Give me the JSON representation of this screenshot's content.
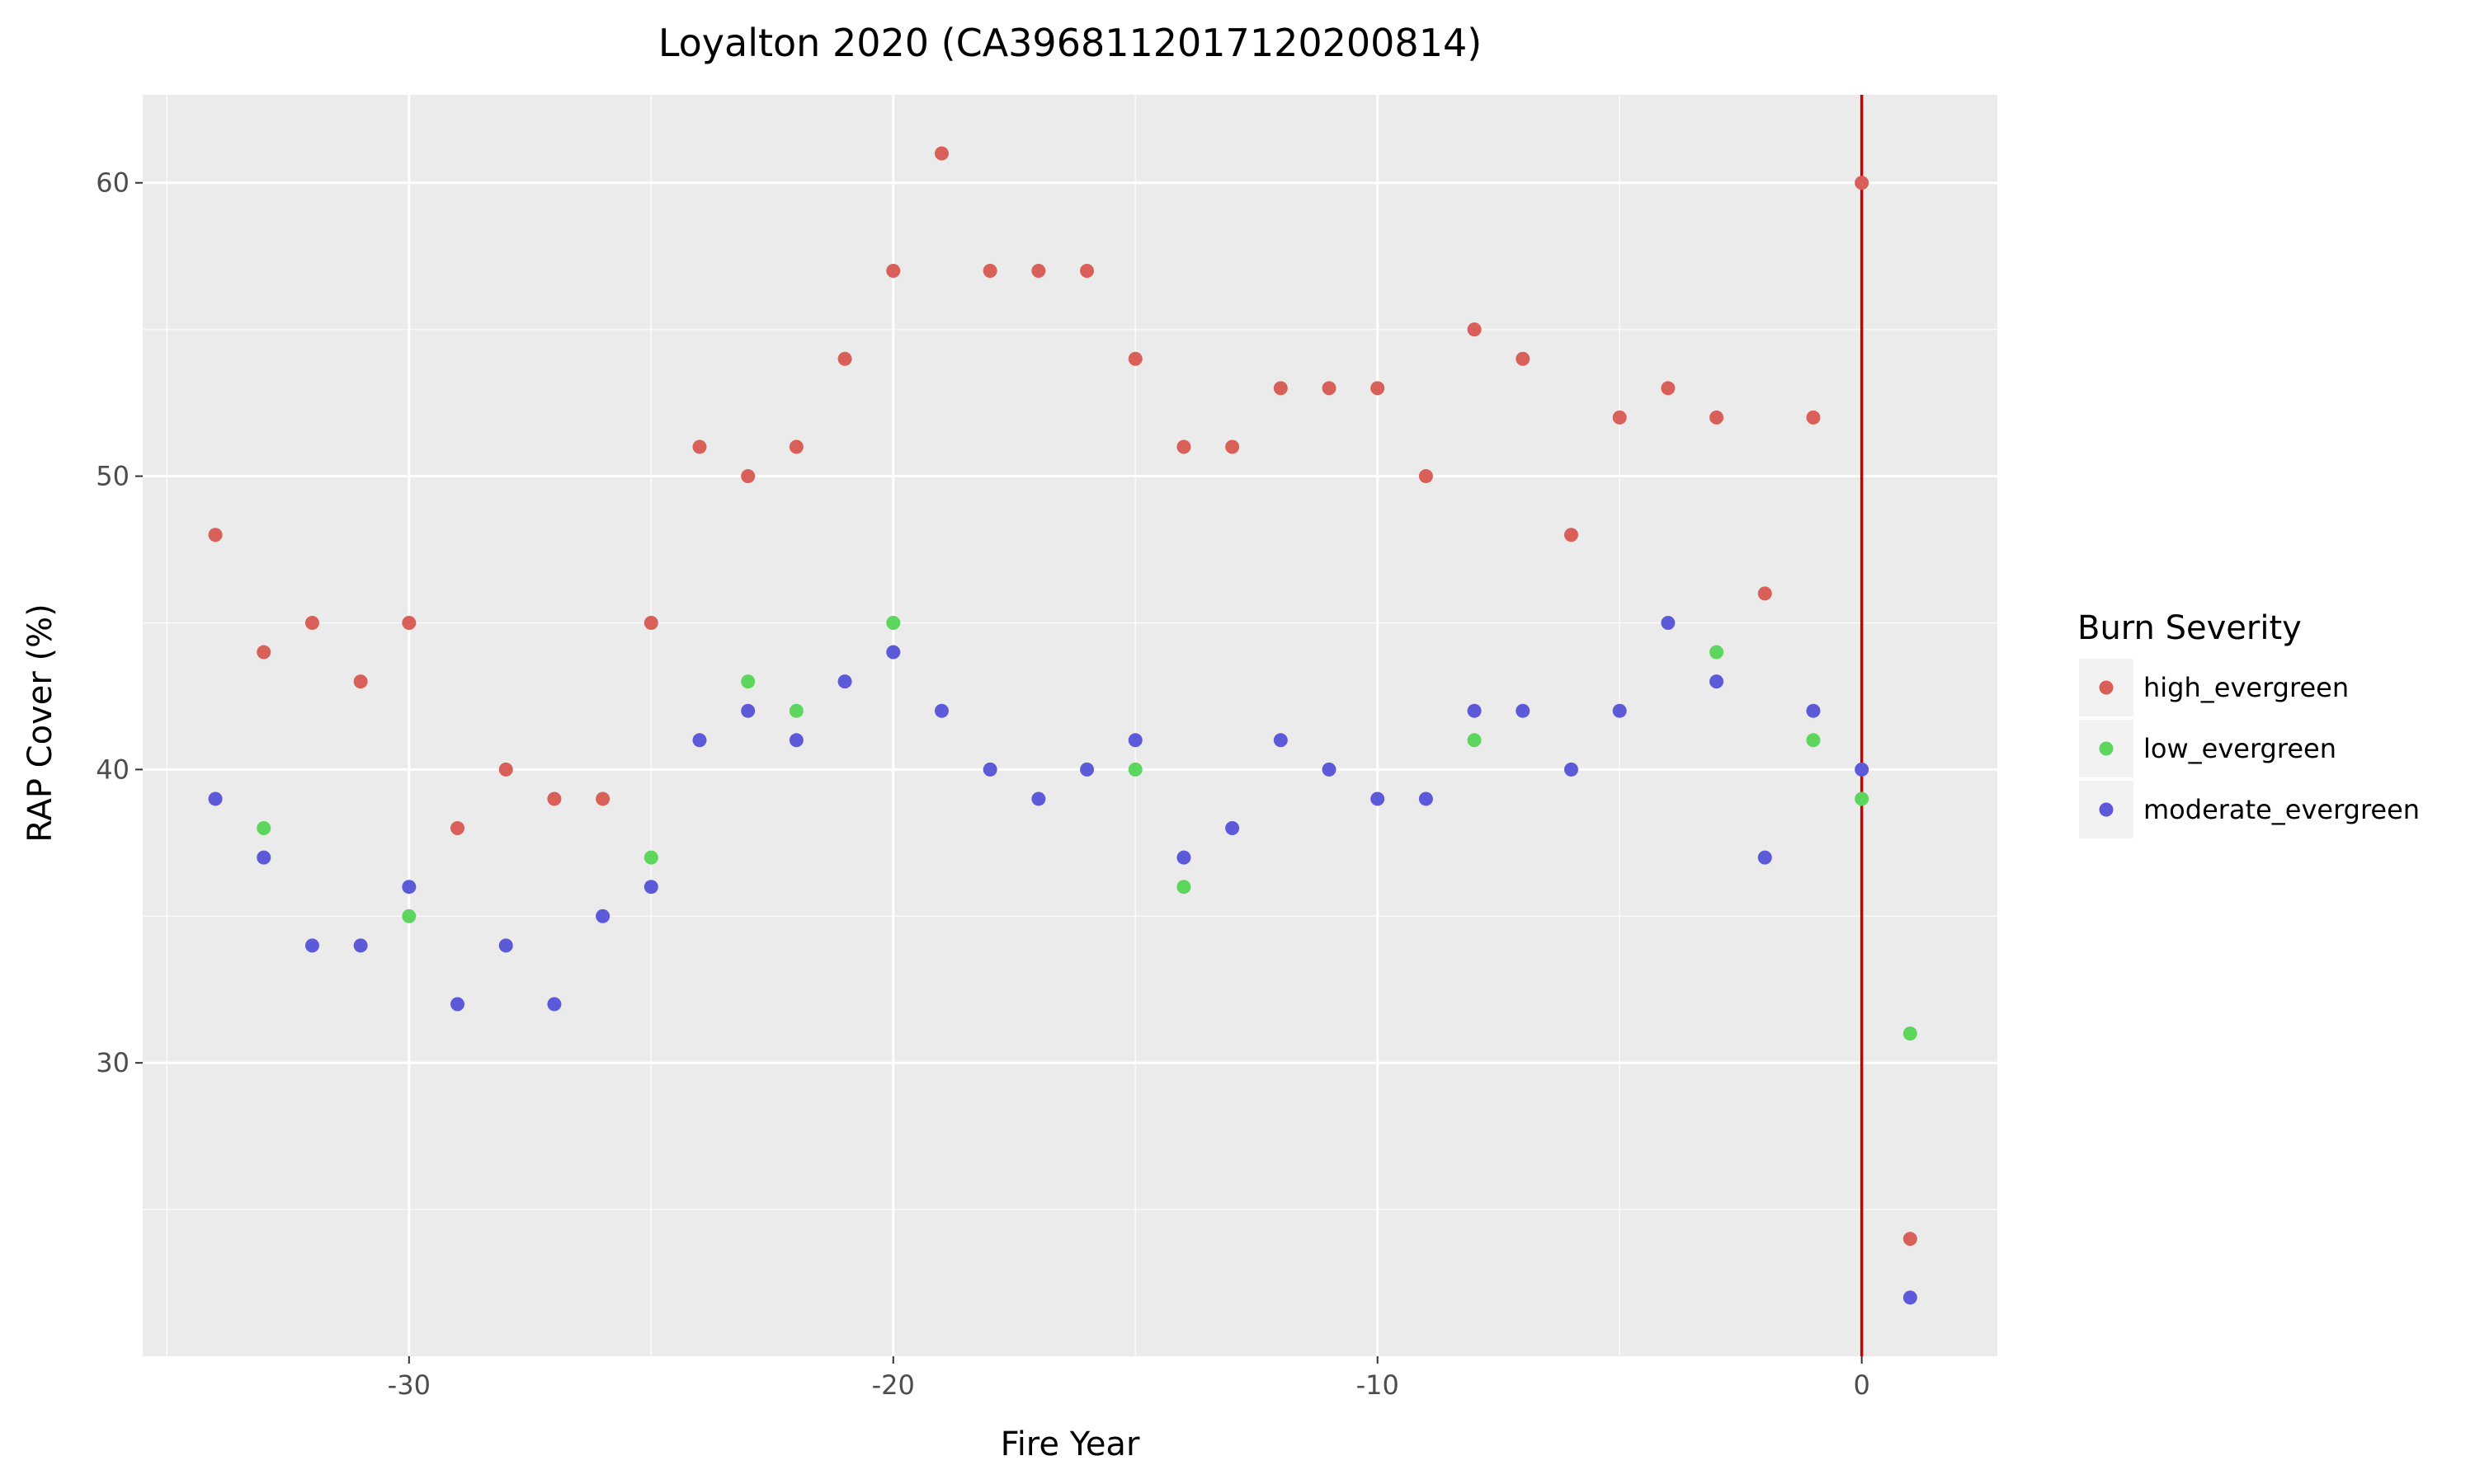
{
  "chart_data": {
    "type": "scatter",
    "title": "Loyalton 2020 (CA3968112017120200814)",
    "xlabel": "Fire Year",
    "ylabel": "RAP Cover (%)",
    "xlim": [
      -35.5,
      2.8
    ],
    "ylim": [
      20,
      63
    ],
    "x_ticks": [
      -30,
      -20,
      -10,
      0
    ],
    "y_ticks": [
      30,
      40,
      50,
      60
    ],
    "x_tick_labels": [
      "-30",
      "-20",
      "-10",
      "0"
    ],
    "y_tick_labels": [
      "30",
      "40",
      "50",
      "60"
    ],
    "grid": true,
    "reference_line": {
      "x": 0,
      "color": "#cc0000"
    },
    "legend": {
      "title": "Burn Severity",
      "position": "right"
    },
    "series": [
      {
        "name": "high_evergreen",
        "color": "#d95f59",
        "x": [
          -34,
          -33,
          -32,
          -31,
          -30,
          -29,
          -28,
          -27,
          -26,
          -25,
          -24,
          -23,
          -22,
          -21,
          -20,
          -19,
          -18,
          -17,
          -16,
          -15,
          -14,
          -13,
          -12,
          -11,
          -10,
          -9,
          -8,
          -7,
          -6,
          -5,
          -4,
          -3,
          -2,
          -1,
          0,
          1
        ],
        "y": [
          48,
          44,
          45,
          43,
          45,
          38,
          40,
          39,
          39,
          45,
          51,
          50,
          51,
          54,
          57,
          61,
          57,
          57,
          57,
          54,
          51,
          51,
          53,
          53,
          53,
          50,
          55,
          54,
          48,
          52,
          53,
          52,
          46,
          52,
          60,
          24
        ]
      },
      {
        "name": "low_evergreen",
        "color": "#5cd65c",
        "x": [
          -33,
          -30,
          -25,
          -23,
          -22,
          -20,
          -15,
          -14,
          -8,
          -3,
          -1,
          0,
          1
        ],
        "y": [
          38,
          35,
          37,
          43,
          42,
          45,
          40,
          36,
          41,
          44,
          41,
          39,
          31
        ]
      },
      {
        "name": "moderate_evergreen",
        "color": "#5c5ad8",
        "x": [
          -34,
          -33,
          -32,
          -31,
          -30,
          -29,
          -28,
          -27,
          -26,
          -25,
          -24,
          -23,
          -22,
          -21,
          -20,
          -19,
          -18,
          -17,
          -16,
          -15,
          -14,
          -13,
          -12,
          -11,
          -10,
          -9,
          -8,
          -7,
          -6,
          -5,
          -4,
          -3,
          -2,
          -1,
          0,
          1
        ],
        "y": [
          39,
          37,
          34,
          34,
          36,
          32,
          34,
          32,
          35,
          36,
          41,
          42,
          41,
          43,
          44,
          42,
          40,
          39,
          40,
          41,
          37,
          38,
          41,
          40,
          39,
          39,
          42,
          42,
          40,
          42,
          45,
          43,
          37,
          42,
          40,
          22
        ]
      }
    ]
  }
}
